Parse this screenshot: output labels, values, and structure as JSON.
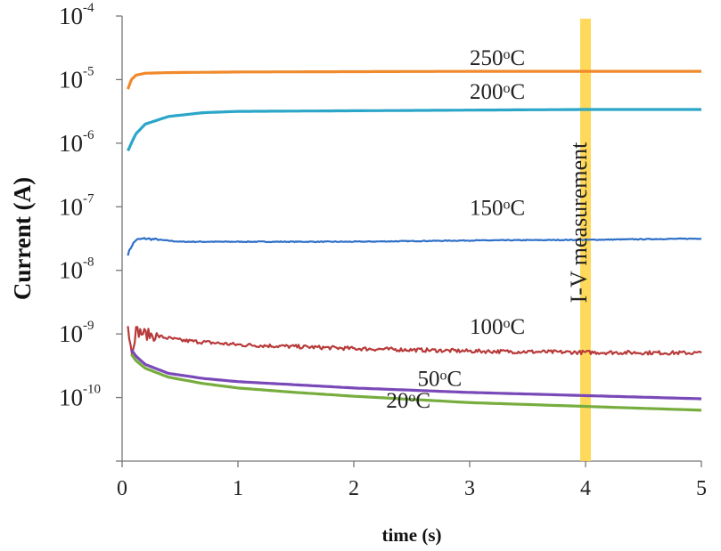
{
  "chart_data": {
    "type": "line",
    "title": "",
    "xlabel": "time (s)",
    "ylabel": "Current (A)",
    "xlim": [
      0,
      5
    ],
    "ylim_exponent": [
      -11,
      -4
    ],
    "yscale": "log",
    "x_ticks": [
      "0",
      "1",
      "2",
      "3",
      "4",
      "5"
    ],
    "y_ticks": [
      {
        "base": "10",
        "exp": "-4"
      },
      {
        "base": "10",
        "exp": "-5"
      },
      {
        "base": "10",
        "exp": "-6"
      },
      {
        "base": "10",
        "exp": "-7"
      },
      {
        "base": "10",
        "exp": "-8"
      },
      {
        "base": "10",
        "exp": "-9"
      },
      {
        "base": "10",
        "exp": "-10"
      }
    ],
    "grid": false,
    "annotation": {
      "label": "I-V measurement",
      "x": 4.0,
      "color": "#FFD54A"
    },
    "series": [
      {
        "name": "250",
        "unit_sup": "o",
        "unit": "C",
        "color": "#F08A2C",
        "label_at": [
          3.0,
          -4.77
        ],
        "x": [
          0.05,
          0.08,
          0.12,
          0.2,
          0.4,
          1,
          2,
          3,
          4,
          5
        ],
        "y": [
          -5.15,
          -5.0,
          -4.93,
          -4.9,
          -4.89,
          -4.88,
          -4.875,
          -4.87,
          -4.87,
          -4.87
        ]
      },
      {
        "name": "200",
        "unit_sup": "o",
        "unit": "C",
        "color": "#2BA6C8",
        "label_at": [
          3.0,
          -5.3
        ],
        "x": [
          0.05,
          0.08,
          0.12,
          0.2,
          0.4,
          0.7,
          1,
          2,
          3,
          4,
          5
        ],
        "y": [
          -6.12,
          -6.0,
          -5.85,
          -5.7,
          -5.58,
          -5.52,
          -5.5,
          -5.49,
          -5.48,
          -5.47,
          -5.47
        ]
      },
      {
        "name": "150",
        "unit_sup": "o",
        "unit": "C",
        "color": "#2E6FC7",
        "label_at": [
          3.0,
          -7.13
        ],
        "x": [
          0.05,
          0.08,
          0.12,
          0.2,
          0.5,
          1,
          2,
          3,
          4,
          5
        ],
        "y": [
          -7.75,
          -7.62,
          -7.52,
          -7.5,
          -7.55,
          -7.55,
          -7.55,
          -7.53,
          -7.52,
          -7.5
        ],
        "noise": 0.006
      },
      {
        "name": "100",
        "unit_sup": "o",
        "unit": "C",
        "color": "#B83A3A",
        "label_at": [
          3.0,
          -9.0
        ],
        "x": [
          0.05,
          0.08,
          0.12,
          0.2,
          0.5,
          1,
          1.5,
          2,
          3,
          4,
          5
        ],
        "y": [
          -8.85,
          -9.3,
          -8.95,
          -9.0,
          -9.1,
          -9.17,
          -9.2,
          -9.23,
          -9.27,
          -9.29,
          -9.3
        ],
        "noise": 0.03
      },
      {
        "name": "50",
        "unit_sup": "o",
        "unit": "C",
        "color": "#7A49B8",
        "label_at": [
          2.55,
          -9.82
        ],
        "x": [
          0.08,
          0.12,
          0.2,
          0.4,
          0.7,
          1,
          1.5,
          2,
          3,
          4,
          5
        ],
        "y": [
          -9.25,
          -9.35,
          -9.48,
          -9.62,
          -9.7,
          -9.75,
          -9.8,
          -9.85,
          -9.92,
          -9.97,
          -10.02
        ]
      },
      {
        "name": "20",
        "unit_sup": "o",
        "unit": "C",
        "color": "#77AD3F",
        "label_at": [
          2.28,
          -10.16
        ],
        "x": [
          0.08,
          0.12,
          0.2,
          0.4,
          0.7,
          1,
          1.5,
          2,
          3,
          4,
          5
        ],
        "y": [
          -9.32,
          -9.42,
          -9.54,
          -9.68,
          -9.78,
          -9.85,
          -9.92,
          -9.98,
          -10.08,
          -10.14,
          -10.2
        ]
      }
    ]
  }
}
